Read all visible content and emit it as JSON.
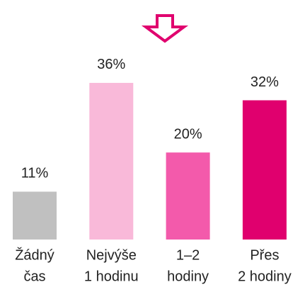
{
  "chart_data": {
    "type": "bar",
    "categories": [
      [
        "Žádný",
        "čas"
      ],
      [
        "Nejvýše",
        "1 hodinu"
      ],
      [
        "1–2",
        "hodiny"
      ],
      [
        "Přes",
        "2 hodiny"
      ]
    ],
    "values": [
      11,
      36,
      20,
      32
    ],
    "value_labels": [
      "11%",
      "36%",
      "20%",
      "32%"
    ],
    "colors": [
      "#c0c0c0",
      "#f9b9d9",
      "#f35aab",
      "#e0006e"
    ]
  }
}
